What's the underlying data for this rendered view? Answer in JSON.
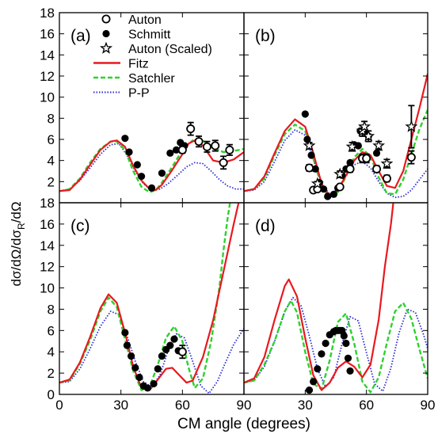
{
  "chart_data": {
    "type": "line",
    "xlabel": "CM angle (degrees)",
    "ylabel": "dσ/dΩ/dσ_R/dΩ",
    "ylabel_parts": {
      "main": "dσ/dΩ/dσ",
      "sub": "R",
      "tail": "/dΩ"
    },
    "xlim": [
      0,
      90
    ],
    "ylim_top": [
      0,
      18
    ],
    "ylim_bottom": [
      0,
      18
    ],
    "xticks": [
      "0",
      "30",
      "60",
      "90"
    ],
    "yticks": [
      "0",
      "2",
      "4",
      "6",
      "8",
      "10",
      "12",
      "14",
      "16",
      "18"
    ],
    "legend": {
      "placement": "top-left of panel (a)",
      "entries": [
        {
          "key": "auton",
          "label": "Auton",
          "style": "open-circle"
        },
        {
          "key": "schmitt",
          "label": "Schmitt",
          "style": "filled-circle"
        },
        {
          "key": "auton_scaled",
          "label": "Auton (Scaled)",
          "style": "open-star"
        },
        {
          "key": "fitz",
          "label": "Fitz",
          "style": "solid",
          "color": "#e8191f"
        },
        {
          "key": "satchler",
          "label": "Satchler",
          "style": "dashed",
          "color": "#2ed12e"
        },
        {
          "key": "pp",
          "label": "P-P",
          "style": "dotted",
          "color": "#2b2bd6"
        }
      ]
    },
    "panels": [
      {
        "id": "a",
        "label": "(a)",
        "row": 0,
        "col": 0,
        "fitz": {
          "x": [
            0,
            5,
            10,
            15,
            20,
            25,
            28,
            32,
            36,
            40,
            44,
            47,
            50,
            55,
            60,
            63,
            66,
            70,
            75,
            80,
            85,
            90
          ],
          "y": [
            1.1,
            1.2,
            2.2,
            3.6,
            5.0,
            5.8,
            5.9,
            5.3,
            3.5,
            2.1,
            1.3,
            1.2,
            1.7,
            3.1,
            4.6,
            5.6,
            5.9,
            5.4,
            4.0,
            3.8,
            4.1,
            4.8
          ]
        },
        "satchler": {
          "x": [
            0,
            5,
            10,
            15,
            20,
            25,
            28,
            32,
            36,
            40,
            44,
            47,
            50,
            55,
            60,
            65,
            68,
            72,
            76,
            80,
            85,
            90
          ],
          "y": [
            1.1,
            1.3,
            2.3,
            3.8,
            5.1,
            5.8,
            5.8,
            5.0,
            3.0,
            1.5,
            1.0,
            1.2,
            1.9,
            3.4,
            5.0,
            5.9,
            6.0,
            5.7,
            5.1,
            4.8,
            4.9,
            5.1
          ]
        },
        "pp": {
          "x": [
            0,
            5,
            10,
            15,
            20,
            25,
            29,
            33,
            37,
            41,
            45,
            49,
            53,
            57,
            62,
            66,
            70,
            74,
            78,
            82,
            86,
            90
          ],
          "y": [
            1.1,
            1.3,
            2.1,
            3.3,
            4.6,
            5.5,
            5.6,
            4.5,
            3.0,
            1.8,
            1.2,
            1.3,
            1.8,
            2.5,
            3.4,
            3.8,
            3.7,
            3.0,
            2.2,
            1.6,
            1.3,
            1.3
          ]
        },
        "auton": {
          "x": [
            60,
            64,
            68,
            72,
            76,
            80,
            83
          ],
          "y": [
            5.0,
            7.0,
            5.8,
            5.3,
            5.4,
            3.8,
            5.0
          ]
        },
        "auton_err": [
          0.3,
          0.6,
          0.5,
          0.5,
          0.5,
          0.6,
          0.5
        ],
        "schmitt": {
          "x": [
            32,
            34,
            38,
            40,
            45,
            50,
            54,
            57,
            59,
            61
          ],
          "y": [
            6.1,
            4.8,
            3.6,
            2.5,
            1.4,
            2.8,
            4.7,
            5.0,
            5.7,
            5.4
          ]
        },
        "auton_scaled": {
          "x": [],
          "y": []
        },
        "auton_scaled_err": []
      },
      {
        "id": "b",
        "label": "(b)",
        "row": 0,
        "col": 1,
        "fitz": {
          "x": [
            0,
            5,
            10,
            15,
            20,
            25,
            30,
            34,
            38,
            42,
            46,
            50,
            54,
            58,
            62,
            66,
            70,
            74,
            78,
            82,
            86,
            90
          ],
          "y": [
            1.1,
            1.3,
            2.5,
            4.7,
            6.8,
            7.9,
            7.2,
            4.7,
            1.8,
            0.6,
            1.2,
            2.6,
            4.0,
            4.8,
            4.5,
            3.0,
            1.6,
            1.4,
            3.0,
            6.0,
            9.0,
            12.2
          ]
        },
        "satchler": {
          "x": [
            0,
            5,
            10,
            15,
            20,
            25,
            30,
            34,
            38,
            42,
            46,
            50,
            54,
            58,
            62,
            66,
            70,
            74,
            78,
            82,
            86,
            90
          ],
          "y": [
            1.1,
            1.3,
            2.3,
            4.5,
            6.5,
            7.4,
            6.8,
            4.2,
            1.5,
            0.5,
            1.0,
            2.5,
            4.3,
            5.1,
            4.4,
            2.4,
            0.9,
            0.8,
            2.2,
            4.6,
            7.0,
            8.8
          ]
        },
        "pp": {
          "x": [
            0,
            5,
            10,
            15,
            20,
            25,
            30,
            34,
            38,
            42,
            46,
            50,
            54,
            58,
            62,
            66,
            70,
            74,
            78,
            82,
            86,
            90
          ],
          "y": [
            1.1,
            1.2,
            2.0,
            3.9,
            5.9,
            6.9,
            6.4,
            4.1,
            1.8,
            0.8,
            1.3,
            2.6,
            3.6,
            3.9,
            3.3,
            2.0,
            0.9,
            0.5,
            0.6,
            1.2,
            2.2,
            3.2
          ]
        },
        "auton": {
          "x": [
            32,
            34,
            36,
            47,
            52,
            58,
            60,
            65,
            70,
            82
          ],
          "y": [
            3.3,
            1.2,
            1.3,
            1.5,
            3.2,
            4.2,
            4.2,
            3.2,
            2.3,
            4.3
          ]
        },
        "auton_err": [
          0.3,
          0.2,
          0.2,
          0.2,
          0.3,
          0.4,
          0.4,
          0.3,
          0.3,
          0.6
        ],
        "schmitt": {
          "x": [
            30,
            31,
            33,
            35,
            37,
            39,
            41,
            44,
            46,
            48,
            50,
            52,
            54,
            56,
            57,
            59,
            61,
            65
          ],
          "y": [
            8.4,
            6.0,
            4.5,
            3.2,
            1.9,
            1.3,
            0.6,
            0.8,
            1.4,
            2.6,
            3.2,
            3.8,
            5.5,
            5.4,
            6.8,
            6.8,
            6.3,
            4.7
          ]
        },
        "auton_scaled": {
          "x": [
            32,
            36,
            47,
            53,
            58,
            59,
            61,
            66,
            70,
            82
          ],
          "y": [
            5.4,
            1.8,
            2.7,
            5.3,
            6.8,
            7.2,
            6.3,
            5.4,
            3.7,
            7.2
          ]
        },
        "auton_scaled_err": [
          0.3,
          0.2,
          0.3,
          0.4,
          0.5,
          0.5,
          0.5,
          0.4,
          0.4,
          2.0
        ]
      },
      {
        "id": "c",
        "label": "(c)",
        "row": 1,
        "col": 0,
        "fitz": {
          "x": [
            0,
            5,
            10,
            15,
            20,
            24,
            28,
            32,
            36,
            40,
            44,
            48,
            52,
            55,
            58,
            62,
            65,
            70,
            75,
            80,
            85,
            88,
            90
          ],
          "y": [
            1.1,
            1.4,
            3.0,
            5.4,
            8.1,
            9.4,
            8.6,
            5.8,
            2.6,
            0.6,
            0.4,
            1.4,
            2.4,
            2.5,
            1.9,
            1.1,
            1.3,
            3.5,
            7.0,
            11.5,
            16.0,
            18.5,
            19.5
          ]
        },
        "satchler": {
          "x": [
            0,
            5,
            10,
            15,
            20,
            24,
            28,
            32,
            36,
            40,
            44,
            48,
            52,
            56,
            60,
            63,
            66,
            70,
            74,
            78,
            80,
            82,
            84
          ],
          "y": [
            1.1,
            1.3,
            2.9,
            5.1,
            7.8,
            9.1,
            8.2,
            5.2,
            2.2,
            0.4,
            0.7,
            2.8,
            5.3,
            6.4,
            5.0,
            2.5,
            0.6,
            1.5,
            5.0,
            10.0,
            13.5,
            16.5,
            19.0
          ]
        },
        "pp": {
          "x": [
            0,
            5,
            10,
            15,
            20,
            25,
            29,
            33,
            37,
            41,
            45,
            49,
            53,
            57,
            61,
            65,
            69,
            73,
            77,
            81,
            85,
            90
          ],
          "y": [
            1.1,
            1.2,
            2.4,
            4.3,
            6.4,
            7.8,
            7.5,
            5.5,
            3.1,
            1.2,
            0.7,
            1.8,
            4.1,
            5.7,
            5.3,
            3.1,
            0.8,
            0.1,
            1.2,
            3.0,
            4.7,
            6.2
          ]
        },
        "auton": {
          "x": [
            60
          ],
          "y": [
            4.0
          ]
        },
        "auton_err": [
          0.6
        ],
        "schmitt": {
          "x": [
            32,
            33,
            35,
            37,
            39,
            41,
            43,
            46,
            48,
            50,
            52,
            54,
            56,
            58
          ],
          "y": [
            5.8,
            4.6,
            3.6,
            2.5,
            1.6,
            0.8,
            0.6,
            1.0,
            2.4,
            3.6,
            4.2,
            4.6,
            5.2,
            4.1
          ]
        },
        "auton_scaled": {
          "x": [],
          "y": []
        },
        "auton_scaled_err": []
      },
      {
        "id": "d",
        "label": "(d)",
        "row": 1,
        "col": 1,
        "fitz": {
          "x": [
            0,
            5,
            10,
            15,
            20,
            22,
            26,
            30,
            34,
            38,
            42,
            46,
            50,
            54,
            58,
            62,
            66,
            69,
            72,
            74,
            76
          ],
          "y": [
            1.1,
            1.5,
            3.5,
            7.0,
            10.2,
            10.8,
            9.2,
            5.3,
            1.8,
            0.4,
            1.1,
            2.5,
            3.1,
            2.6,
            1.6,
            2.8,
            7.0,
            12.0,
            16.0,
            19.5,
            22.0
          ]
        },
        "satchler": {
          "x": [
            0,
            5,
            10,
            15,
            20,
            23,
            26,
            30,
            34,
            38,
            42,
            46,
            50,
            54,
            58,
            62,
            66,
            70,
            74,
            78,
            82,
            86,
            90
          ],
          "y": [
            1.1,
            1.3,
            2.8,
            5.0,
            7.8,
            8.8,
            7.7,
            4.0,
            1.0,
            0.5,
            3.2,
            6.8,
            7.6,
            4.8,
            1.2,
            0.2,
            1.6,
            4.8,
            7.8,
            8.6,
            7.1,
            4.2,
            1.5
          ]
        },
        "pp": {
          "x": [
            0,
            5,
            10,
            15,
            20,
            24,
            28,
            32,
            36,
            40,
            44,
            48,
            52,
            56,
            60,
            64,
            68,
            72,
            76,
            80,
            84,
            88,
            90
          ],
          "y": [
            1.1,
            1.3,
            2.6,
            5.0,
            7.8,
            9.1,
            8.3,
            5.5,
            2.4,
            0.7,
            1.6,
            4.7,
            7.3,
            6.9,
            3.9,
            1.0,
            0.3,
            2.5,
            5.8,
            8.0,
            7.7,
            5.6,
            4.3
          ]
        },
        "auton": {
          "x": [],
          "y": []
        },
        "auton_err": [],
        "schmitt": {
          "x": [
            32,
            34,
            36,
            38,
            40,
            42,
            44,
            45,
            46,
            47,
            48,
            49,
            50,
            51,
            52
          ],
          "y": [
            0.4,
            1.2,
            2.4,
            3.8,
            4.8,
            5.6,
            5.9,
            6.0,
            6.0,
            6.0,
            6.0,
            5.5,
            4.8,
            3.4,
            2.2
          ]
        },
        "auton_scaled": {
          "x": [],
          "y": []
        },
        "auton_scaled_err": []
      }
    ]
  }
}
